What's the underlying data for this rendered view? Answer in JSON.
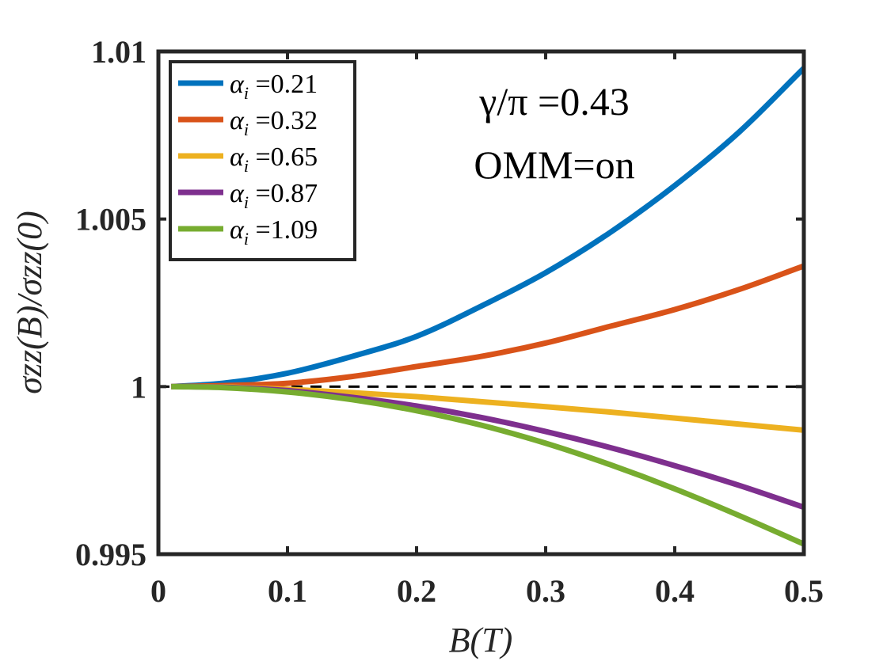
{
  "chart_data": {
    "type": "line",
    "title": "",
    "xlabel": "B(T)",
    "ylabel": "σzz(B)/σzz(0)",
    "xlim": [
      0,
      0.5
    ],
    "ylim": [
      0.995,
      1.01
    ],
    "xticks": [
      "0",
      "0.1",
      "0.2",
      "0.3",
      "0.4",
      "0.5"
    ],
    "yticks": [
      "0.995",
      "1",
      "1.005",
      "1.01"
    ],
    "legend_position": "top-left",
    "annotations": [
      "γ/π =0.43",
      "OMM=on"
    ],
    "reference_line": {
      "y": 1,
      "style": "dashed",
      "color": "#000000"
    },
    "x": [
      0.01,
      0.05,
      0.1,
      0.15,
      0.2,
      0.25,
      0.3,
      0.35,
      0.4,
      0.45,
      0.5
    ],
    "series": [
      {
        "name": "αi =0.21",
        "color": "#0072BD",
        "values": [
          1.0,
          1.0001,
          1.0004,
          1.0009,
          1.0015,
          1.0024,
          1.0034,
          1.0046,
          1.006,
          1.0076,
          1.0095
        ]
      },
      {
        "name": "αi =0.32",
        "color": "#D95319",
        "values": [
          1.0,
          1.00003,
          1.0001,
          1.0003,
          1.0006,
          1.0009,
          1.0013,
          1.0018,
          1.0023,
          1.0029,
          1.0036
        ]
      },
      {
        "name": "αi =0.65",
        "color": "#EDB120",
        "values": [
          1.0,
          0.99999,
          0.99992,
          0.99982,
          0.9997,
          0.99955,
          0.9994,
          0.99924,
          0.99906,
          0.99888,
          0.9987
        ]
      },
      {
        "name": "αi =0.87",
        "color": "#7E2F8E",
        "values": [
          1.0,
          0.99998,
          0.99988,
          0.99968,
          0.99942,
          0.99908,
          0.99866,
          0.99818,
          0.99764,
          0.99705,
          0.9964
        ]
      },
      {
        "name": "αi =1.09",
        "color": "#77AC30",
        "values": [
          1.0,
          0.99997,
          0.99984,
          0.99961,
          0.99928,
          0.99885,
          0.99831,
          0.99767,
          0.99695,
          0.99615,
          0.9953
        ]
      }
    ]
  }
}
